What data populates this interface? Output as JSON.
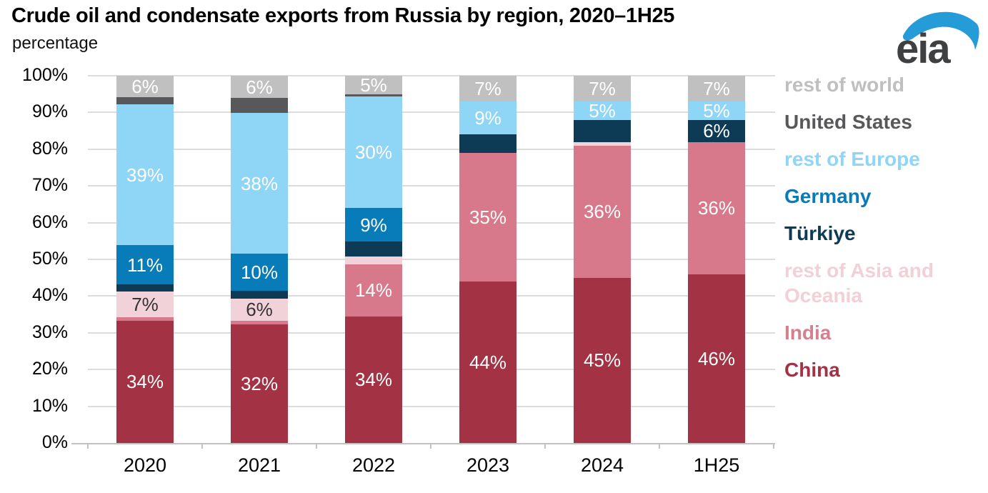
{
  "header": {
    "title": "Crude oil and condensate exports from Russia by region, 2020–1H25",
    "subtitle": "percentage",
    "logo_text": "eia",
    "logo_swoosh_color": "#259bd7",
    "logo_text_color": "#3f4042"
  },
  "chart_data": {
    "type": "bar",
    "subtype": "100%-stacked-column",
    "title": "Crude oil and condensate exports from Russia by region, 2020–1H25",
    "ylabel": "percentage",
    "ylim": [
      0,
      100
    ],
    "grid": true,
    "legend_position": "right",
    "y_ticks": [
      "0%",
      "10%",
      "20%",
      "30%",
      "40%",
      "50%",
      "60%",
      "70%",
      "80%",
      "90%",
      "100%"
    ],
    "categories": [
      "2020",
      "2021",
      "2022",
      "2023",
      "2024",
      "1H25"
    ],
    "series": [
      {
        "id": "china",
        "name": "China",
        "color": "#a43245",
        "label_color": "#ffffff",
        "values": [
          34,
          32,
          34,
          44,
          45,
          46
        ],
        "labels": [
          "34%",
          "32%",
          "34%",
          "44%",
          "45%",
          "46%"
        ]
      },
      {
        "id": "india",
        "name": "India",
        "color": "#d7798a",
        "label_color": "#ffffff",
        "values": [
          1,
          1,
          14,
          35,
          36,
          36
        ],
        "labels": [
          null,
          null,
          "14%",
          "35%",
          "36%",
          "36%"
        ]
      },
      {
        "id": "rest-of-asia-and-oceania",
        "name": "rest of Asia and Oceania",
        "color": "#f2d2d9",
        "label_color": "#333333",
        "values": [
          7,
          6,
          2,
          0,
          1,
          0
        ],
        "labels": [
          "7%",
          "6%",
          null,
          null,
          null,
          null
        ]
      },
      {
        "id": "turkiye",
        "name": "Türkiye",
        "color": "#0d3a54",
        "label_color": "#ffffff",
        "values": [
          2,
          2,
          4,
          5,
          6,
          6
        ],
        "labels": [
          null,
          null,
          null,
          null,
          null,
          "6%"
        ]
      },
      {
        "id": "germany",
        "name": "Germany",
        "color": "#077cb8",
        "label_color": "#ffffff",
        "values": [
          11,
          10,
          9,
          0,
          0,
          0
        ],
        "labels": [
          "11%",
          "10%",
          "9%",
          null,
          null,
          null
        ]
      },
      {
        "id": "rest-of-europe",
        "name": "rest of Europe",
        "color": "#8ed5f6",
        "label_color": "#ffffff",
        "values": [
          39,
          38,
          30,
          9,
          5,
          5
        ],
        "labels": [
          "39%",
          "38%",
          "30%",
          "9%",
          "5%",
          "5%"
        ]
      },
      {
        "id": "united-states",
        "name": "United States",
        "color": "#58585a",
        "label_color": "#ffffff",
        "values": [
          2,
          4,
          0.5,
          0,
          0,
          0
        ],
        "labels": [
          null,
          null,
          null,
          null,
          null,
          null
        ]
      },
      {
        "id": "rest-of-world",
        "name": "rest of world",
        "color": "#c0c0c0",
        "label_color": "#ffffff",
        "values": [
          6,
          6,
          5,
          7,
          7,
          7
        ],
        "labels": [
          "6%",
          "6%",
          "5%",
          "7%",
          "7%",
          "7%"
        ]
      }
    ],
    "legend": [
      {
        "id": "rest-of-world",
        "label": "rest of world",
        "color": "#bfbfbf"
      },
      {
        "id": "united-states",
        "label": "United States",
        "color": "#58585a"
      },
      {
        "id": "rest-of-europe",
        "label": "rest of Europe",
        "color": "#8ed5f6"
      },
      {
        "id": "germany",
        "label": "Germany",
        "color": "#077cb8"
      },
      {
        "id": "turkiye",
        "label": "Türkiye",
        "color": "#0d3a54"
      },
      {
        "id": "rest-of-asia-and-oceania",
        "label": "rest of Asia and Oceania",
        "color": "#f2d0d7"
      },
      {
        "id": "india",
        "label": "India",
        "color": "#d5808e"
      },
      {
        "id": "china",
        "label": "China",
        "color": "#a43245"
      }
    ]
  }
}
